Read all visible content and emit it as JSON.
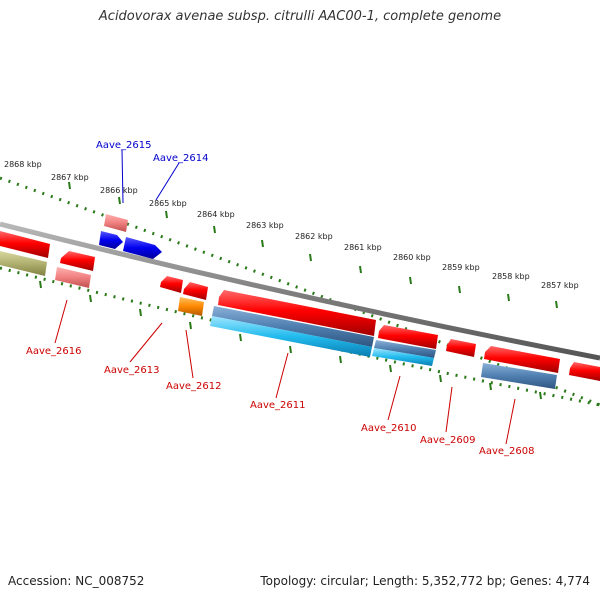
{
  "title": "Acidovorax avenae subsp. citrulli AAC00-1, complete genome",
  "footer": {
    "accession": "Accession: NC_008752",
    "summary": "Topology: circular; Length: 5,352,772 bp; Genes: 4,774"
  },
  "colors": {
    "backbone": "#808080",
    "tick": "#2a7a1a",
    "red": "#ff0000",
    "pink": "#f08080",
    "blue": "#0000ee",
    "orange": "#ff8800",
    "cyan": "#22bbee",
    "steelblue": "#4f7fb0",
    "olive": "#b0b070",
    "label_top": "#0000cc",
    "label_bottom": "#cc0000"
  },
  "kbp_labels": [
    "2868 kbp",
    "2867 kbp",
    "2866 kbp",
    "2865 kbp",
    "2864 kbp",
    "2863 kbp",
    "2862 kbp",
    "2861 kbp",
    "2860 kbp",
    "2859 kbp",
    "2858 kbp",
    "2857 kbp"
  ],
  "genes": {
    "Aave_2615": "Aave_2615",
    "Aave_2614": "Aave_2614",
    "Aave_2616": "Aave_2616",
    "Aave_2613": "Aave_2613",
    "Aave_2612": "Aave_2612",
    "Aave_2611": "Aave_2611",
    "Aave_2610": "Aave_2610",
    "Aave_2609": "Aave_2609",
    "Aave_2608": "Aave_2608"
  }
}
